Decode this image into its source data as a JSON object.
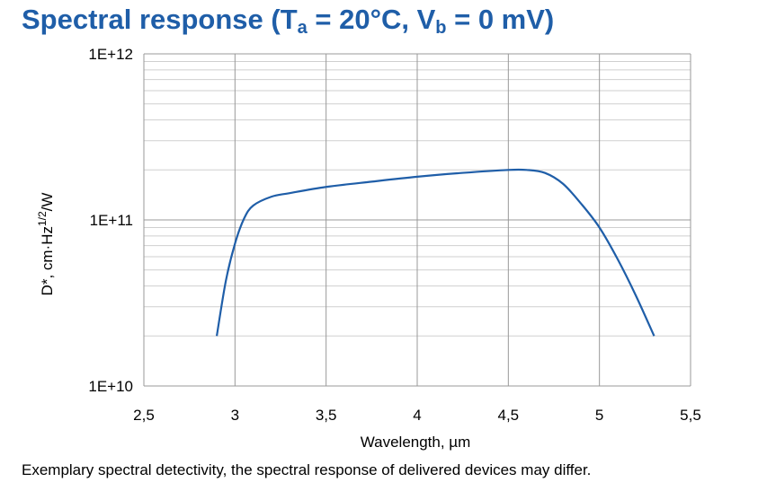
{
  "title": {
    "prefix": "Spectral response (T",
    "sub1": "a",
    "middle": " = 20°C, V",
    "sub2": "b",
    "suffix": " = 0 mV)"
  },
  "caption": "Exemplary spectral detectivity, the spectral response of delivered devices may differ.",
  "colors": {
    "title": "#1f5ea8",
    "series": "#1f5ea8",
    "major_grid": "#999999",
    "minor_grid": "#cfcfcf"
  },
  "chart_data": {
    "type": "line",
    "xlabel": "Wavelength, µm",
    "ylabel": "D*, cm·Hz^1/2/W",
    "ylabel_parts": {
      "main": "D*, cm·Hz",
      "sup": "1/2",
      "tail": "/W"
    },
    "xlim": [
      2.5,
      5.5
    ],
    "ylim": [
      10000000000.0,
      1000000000000.0
    ],
    "yscale": "log",
    "grid": true,
    "x_ticks": [
      2.5,
      3,
      3.5,
      4,
      4.5,
      5,
      5.5
    ],
    "x_tick_labels": [
      "2,5",
      "3",
      "3,5",
      "4",
      "4,5",
      "5",
      "5,5"
    ],
    "y_ticks": [
      10000000000.0,
      100000000000.0,
      1000000000000.0
    ],
    "y_tick_labels": [
      "1E+10",
      "1E+11",
      "1E+12"
    ],
    "series": [
      {
        "points": [
          [
            2.9,
            20000000000.0
          ],
          [
            2.95,
            43000000000.0
          ],
          [
            3.0,
            72000000000.0
          ],
          [
            3.05,
            102000000000.0
          ],
          [
            3.1,
            122000000000.0
          ],
          [
            3.2,
            138000000000.0
          ],
          [
            3.3,
            145000000000.0
          ],
          [
            3.5,
            158000000000.0
          ],
          [
            3.75,
            170000000000.0
          ],
          [
            4.0,
            182000000000.0
          ],
          [
            4.25,
            192000000000.0
          ],
          [
            4.5,
            200000000000.0
          ],
          [
            4.6,
            200000000000.0
          ],
          [
            4.7,
            192000000000.0
          ],
          [
            4.8,
            165000000000.0
          ],
          [
            4.9,
            125000000000.0
          ],
          [
            5.0,
            90000000000.0
          ],
          [
            5.1,
            58000000000.0
          ],
          [
            5.2,
            35000000000.0
          ],
          [
            5.3,
            20000000000.0
          ]
        ]
      }
    ]
  }
}
